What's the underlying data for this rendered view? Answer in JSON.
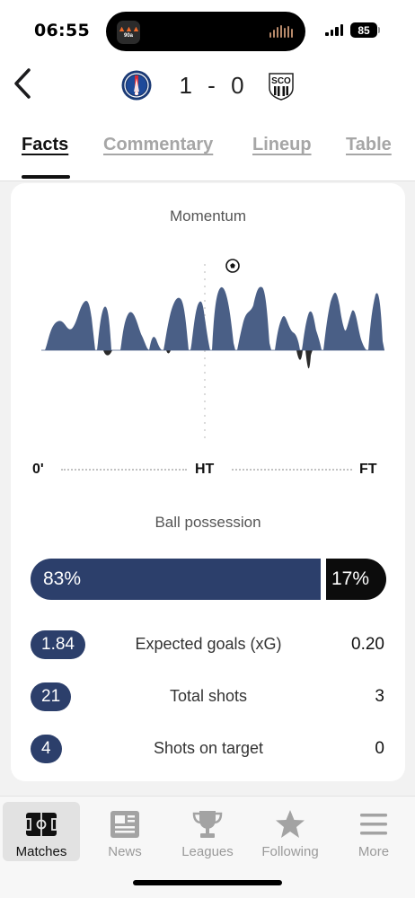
{
  "status_bar": {
    "time": "06:55",
    "battery": "85",
    "island_app_label": "90a",
    "icons": [
      "signal-icon",
      "battery-icon"
    ]
  },
  "match": {
    "home_score": "1",
    "separator": "-",
    "away_score": "0",
    "home_team_logo": "psg-crest-icon",
    "away_team_logo": "sco-angers-crest-icon",
    "away_logo_text": "SCO"
  },
  "tabs": [
    {
      "label": "Facts",
      "active": true
    },
    {
      "label": "Commentary",
      "active": false
    },
    {
      "label": "Lineup",
      "active": false
    },
    {
      "label": "Table",
      "active": false
    }
  ],
  "momentum": {
    "title": "Momentum",
    "axis": {
      "start": "0'",
      "half": "HT",
      "end": "FT"
    },
    "goal_marker": "football-icon"
  },
  "possession": {
    "title": "Ball possession",
    "home": "83%",
    "away": "17%",
    "home_share": 0.83
  },
  "stats": [
    {
      "home": "1.84",
      "label": "Expected goals (xG)",
      "away": "0.20"
    },
    {
      "home": "21",
      "label": "Total shots",
      "away": "3"
    },
    {
      "home": "4",
      "label": "Shots on target",
      "away": "0"
    }
  ],
  "colors": {
    "home": "#2c3f6b",
    "away": "#0c0c0c",
    "momentum_home": "#4a5f86",
    "momentum_away": "#2a2a2a"
  },
  "bottom_nav": [
    {
      "label": "Matches",
      "icon": "pitch-icon",
      "active": true
    },
    {
      "label": "News",
      "icon": "newspaper-icon",
      "active": false
    },
    {
      "label": "Leagues",
      "icon": "trophy-icon",
      "active": false
    },
    {
      "label": "Following",
      "icon": "star-icon",
      "active": false
    },
    {
      "label": "More",
      "icon": "menu-icon",
      "active": false
    }
  ]
}
